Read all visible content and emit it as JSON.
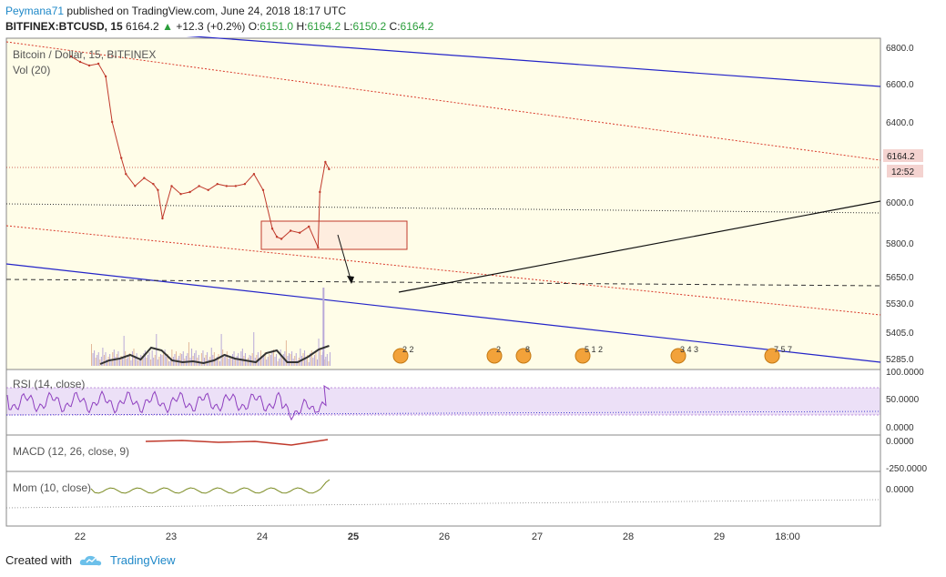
{
  "header": {
    "author": "Peymana71",
    "published": "published on TradingView.com, June 24, 2018 18:17 UTC",
    "symbol": "BITFINEX:BTCUSD, 15",
    "last": "6164.2",
    "change": "+12.3 (+0.2%)",
    "o_label": "O:",
    "o_val": "6151.0",
    "h_label": "H:",
    "h_val": "6164.2",
    "l_label": "L:",
    "l_val": "6150.2",
    "c_label": "C:",
    "c_val": "6164.2"
  },
  "footer": {
    "created_with": "Created with",
    "brand": "TradingView"
  },
  "colors": {
    "pane_bg": "#fffde8",
    "rsi_band": "#ece0f7",
    "price_line": "#c0392b",
    "channel_blue": "#2424c8",
    "channel_red": "#d93a2b",
    "rsi_line": "#8e3fbf",
    "mom_line": "#7a8a20",
    "vol_ma": "#333333",
    "brand": "#1e88c8"
  },
  "chart_data": [
    {
      "type": "line",
      "title": "Bitcoin / Dollar, 15, BITFINEX",
      "legend": [
        "Vol (20)"
      ],
      "x_ticks": [
        "22",
        "23",
        "24",
        "25",
        "26",
        "27",
        "28",
        "29",
        "18:00"
      ],
      "y_ticks": [
        "6800.0",
        "6600.0",
        "6400.0",
        "6000.0",
        "5800.0",
        "5650.0",
        "5530.0",
        "5405.0",
        "5285.0"
      ],
      "last_price_label": "6164.2",
      "countdown_label": "12:52",
      "x": [
        21.9,
        22.0,
        22.1,
        22.2,
        22.28,
        22.35,
        22.45,
        22.5,
        22.6,
        22.7,
        22.8,
        22.85,
        22.9,
        23.0,
        23.1,
        23.2,
        23.3,
        23.4,
        23.5,
        23.6,
        23.7,
        23.8,
        23.9,
        24.0,
        24.1,
        24.15,
        24.2,
        24.3,
        24.4,
        24.5,
        24.6,
        24.62,
        24.68,
        24.72
      ],
      "y": [
        6750,
        6720,
        6700,
        6710,
        6640,
        6400,
        6220,
        6140,
        6080,
        6120,
        6090,
        6060,
        5920,
        6080,
        6040,
        6050,
        6080,
        6060,
        6090,
        6080,
        6080,
        6090,
        6140,
        6060,
        5870,
        5830,
        5820,
        5860,
        5850,
        5880,
        5780,
        6050,
        6200,
        6164.2
      ],
      "volume_spike_x": 24.65,
      "rsi_ticks": [
        "100.0000",
        "50.0000",
        "0.0000"
      ],
      "rsi_label": "RSI (14, close)",
      "macd_label": "MACD (12, 26, close, 9)",
      "macd_ticks": [
        "0.0000",
        "-250.0000"
      ],
      "mom_label": "Mom (10, close)",
      "mom_ticks": [
        "0.0000"
      ],
      "event_labels": [
        "2 2",
        "2",
        "8",
        "5 1 2",
        "3 4 3",
        "7 5 7"
      ]
    }
  ]
}
